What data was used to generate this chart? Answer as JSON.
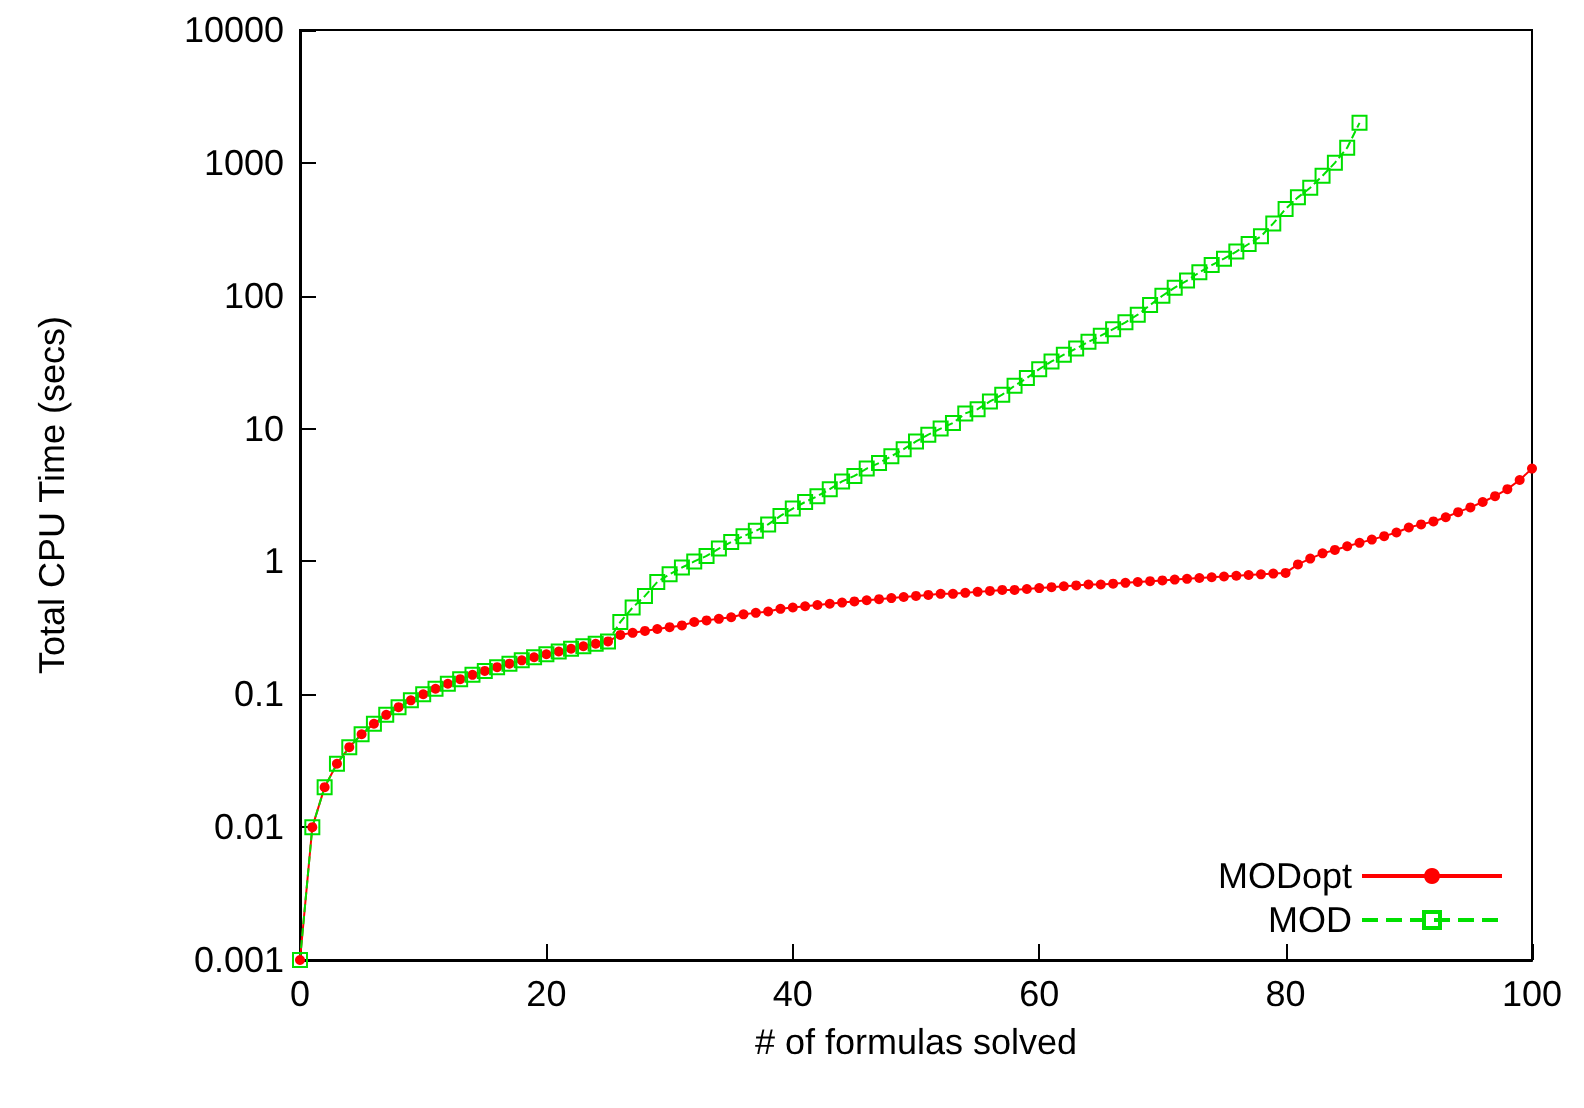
{
  "chart_data": {
    "type": "line",
    "xlabel": "# of formulas solved",
    "ylabel": "Total CPU Time (secs)",
    "log": "y",
    "xlim": [
      0,
      100
    ],
    "xticks": [
      0,
      20,
      40,
      60,
      80,
      100
    ],
    "ylim": [
      0.001,
      10000
    ],
    "yticks": [
      0.001,
      0.01,
      0.1,
      1,
      10,
      100,
      1000,
      10000
    ],
    "grid": false,
    "legend": "bottom right",
    "series": [
      {
        "name": "MODopt",
        "color": "#ff0000",
        "marker": "circle",
        "line_style": "solid",
        "x": [
          0,
          1,
          2,
          3,
          4,
          5,
          6,
          7,
          8,
          9,
          10,
          11,
          12,
          13,
          14,
          15,
          16,
          17,
          18,
          19,
          20,
          21,
          22,
          23,
          24,
          25,
          26,
          27,
          28,
          29,
          30,
          31,
          32,
          33,
          34,
          35,
          36,
          37,
          38,
          39,
          40,
          41,
          42,
          43,
          44,
          45,
          46,
          47,
          48,
          49,
          50,
          51,
          52,
          53,
          54,
          55,
          56,
          57,
          58,
          59,
          60,
          61,
          62,
          63,
          64,
          65,
          66,
          67,
          68,
          69,
          70,
          71,
          72,
          73,
          74,
          75,
          76,
          77,
          78,
          79,
          80,
          81,
          82,
          83,
          84,
          85,
          86,
          87,
          88,
          89,
          90,
          91,
          92,
          93,
          94,
          95,
          96,
          97,
          98,
          99,
          100
        ],
        "values": [
          0.001,
          0.01,
          0.02,
          0.03,
          0.04,
          0.05,
          0.06,
          0.07,
          0.08,
          0.09,
          0.1,
          0.11,
          0.12,
          0.13,
          0.14,
          0.15,
          0.16,
          0.17,
          0.18,
          0.19,
          0.2,
          0.21,
          0.22,
          0.23,
          0.24,
          0.25,
          0.28,
          0.29,
          0.3,
          0.31,
          0.32,
          0.33,
          0.35,
          0.36,
          0.37,
          0.38,
          0.4,
          0.41,
          0.42,
          0.44,
          0.45,
          0.46,
          0.47,
          0.48,
          0.49,
          0.5,
          0.51,
          0.52,
          0.53,
          0.54,
          0.55,
          0.56,
          0.57,
          0.57,
          0.58,
          0.59,
          0.6,
          0.61,
          0.61,
          0.62,
          0.63,
          0.64,
          0.65,
          0.66,
          0.67,
          0.67,
          0.68,
          0.69,
          0.7,
          0.71,
          0.72,
          0.73,
          0.74,
          0.75,
          0.76,
          0.77,
          0.78,
          0.79,
          0.8,
          0.81,
          0.82,
          0.95,
          1.05,
          1.15,
          1.22,
          1.3,
          1.38,
          1.46,
          1.55,
          1.65,
          1.8,
          1.9,
          2.0,
          2.15,
          2.35,
          2.55,
          2.8,
          3.1,
          3.5,
          4.1,
          5
        ]
      },
      {
        "name": "MOD",
        "color": "#00e000",
        "marker": "square",
        "line_style": "dashed",
        "x": [
          0,
          1,
          2,
          3,
          4,
          5,
          6,
          7,
          8,
          9,
          10,
          11,
          12,
          13,
          14,
          15,
          16,
          17,
          18,
          19,
          20,
          21,
          22,
          23,
          24,
          25,
          26,
          27,
          28,
          29,
          30,
          31,
          32,
          33,
          34,
          35,
          36,
          37,
          38,
          39,
          40,
          41,
          42,
          43,
          44,
          45,
          46,
          47,
          48,
          49,
          50,
          51,
          52,
          53,
          54,
          55,
          56,
          57,
          58,
          59,
          60,
          61,
          62,
          63,
          64,
          65,
          66,
          67,
          68,
          69,
          70,
          71,
          72,
          73,
          74,
          75,
          76,
          77,
          78,
          79,
          80,
          81,
          82,
          83,
          84,
          85,
          86
        ],
        "values": [
          0.001,
          0.01,
          0.02,
          0.03,
          0.04,
          0.05,
          0.06,
          0.07,
          0.08,
          0.09,
          0.1,
          0.11,
          0.12,
          0.13,
          0.14,
          0.15,
          0.16,
          0.17,
          0.18,
          0.19,
          0.2,
          0.21,
          0.22,
          0.23,
          0.24,
          0.25,
          0.35,
          0.45,
          0.55,
          0.7,
          0.8,
          0.9,
          1,
          1.1,
          1.25,
          1.4,
          1.55,
          1.7,
          1.9,
          2.2,
          2.5,
          2.8,
          3.1,
          3.5,
          4,
          4.4,
          5,
          5.5,
          6.2,
          7,
          8,
          9,
          10,
          11,
          13,
          14,
          16,
          18,
          21,
          24,
          28,
          32,
          36,
          40,
          45,
          50,
          56,
          63,
          72,
          85,
          100,
          115,
          130,
          150,
          170,
          190,
          215,
          245,
          280,
          350,
          450,
          550,
          650,
          800,
          1000,
          1300,
          2000
        ]
      }
    ]
  }
}
